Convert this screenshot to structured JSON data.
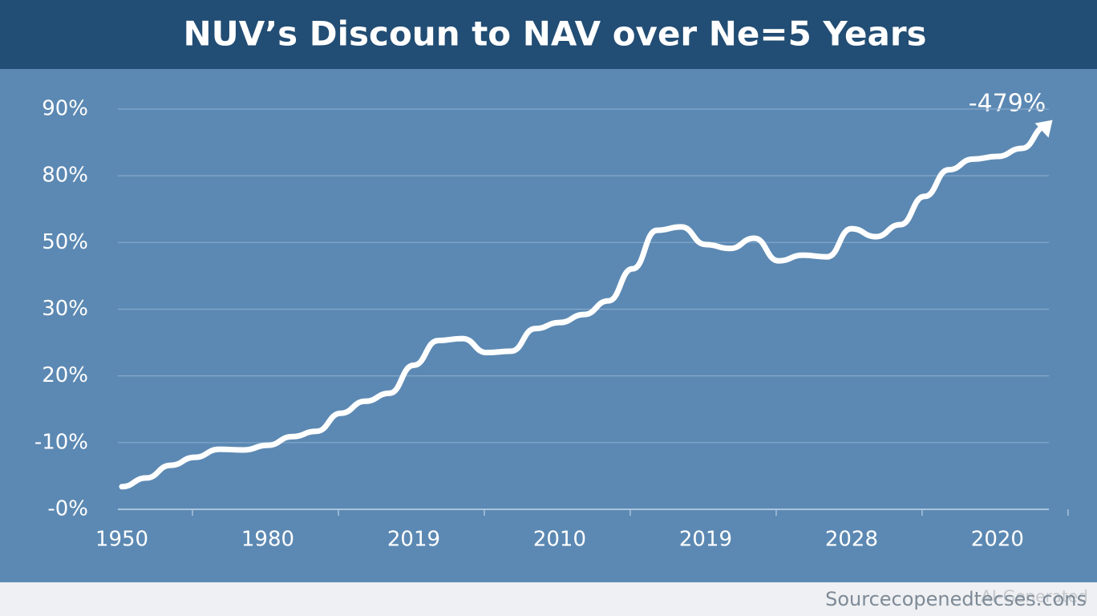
{
  "chart_data": {
    "type": "line",
    "title": "NUV’s Discoun to NAV over Ne=5 Years",
    "annotation": "-479%",
    "source": "Sourcecopenedtecses.cons",
    "watermark": "AI-Generated",
    "categories": [
      "1950",
      null,
      null,
      null,
      null,
      null,
      "1980",
      null,
      null,
      null,
      null,
      null,
      "2019",
      null,
      null,
      null,
      null,
      null,
      "2010",
      null,
      null,
      null,
      null,
      null,
      "2019",
      null,
      null,
      null,
      null,
      null,
      "2028",
      null,
      null,
      null,
      null,
      null,
      "2020",
      null,
      null
    ],
    "series": [
      {
        "name": "Discount to NAV",
        "color": "#ffffff",
        "values": [
          3.4,
          4.7,
          6.6,
          7.8,
          9.0,
          8.9,
          9.6,
          10.9,
          11.7,
          14.4,
          16.2,
          17.4,
          21.6,
          25.3,
          25.6,
          23.5,
          23.7,
          27.1,
          28.0,
          29.2,
          32.5,
          42.1,
          55.5,
          57.0,
          49.4,
          48.2,
          51.9,
          44.5,
          46.2,
          45.7,
          56.2,
          52.6,
          58.0,
          70.7,
          80.9,
          82.5,
          82.9,
          84.1,
          87.4
        ]
      }
    ],
    "ylim": [
      0,
      90
    ],
    "yticks": [
      {
        "value": 0,
        "label": "-0%"
      },
      {
        "value": 10,
        "label": "-10%"
      },
      {
        "value": 20,
        "label": "20%"
      },
      {
        "value": 30,
        "label": "30%"
      },
      {
        "value": 50,
        "label": "50%"
      },
      {
        "value": 80,
        "label": "80%"
      },
      {
        "value": 90,
        "label": "90%"
      }
    ],
    "grid": true
  }
}
